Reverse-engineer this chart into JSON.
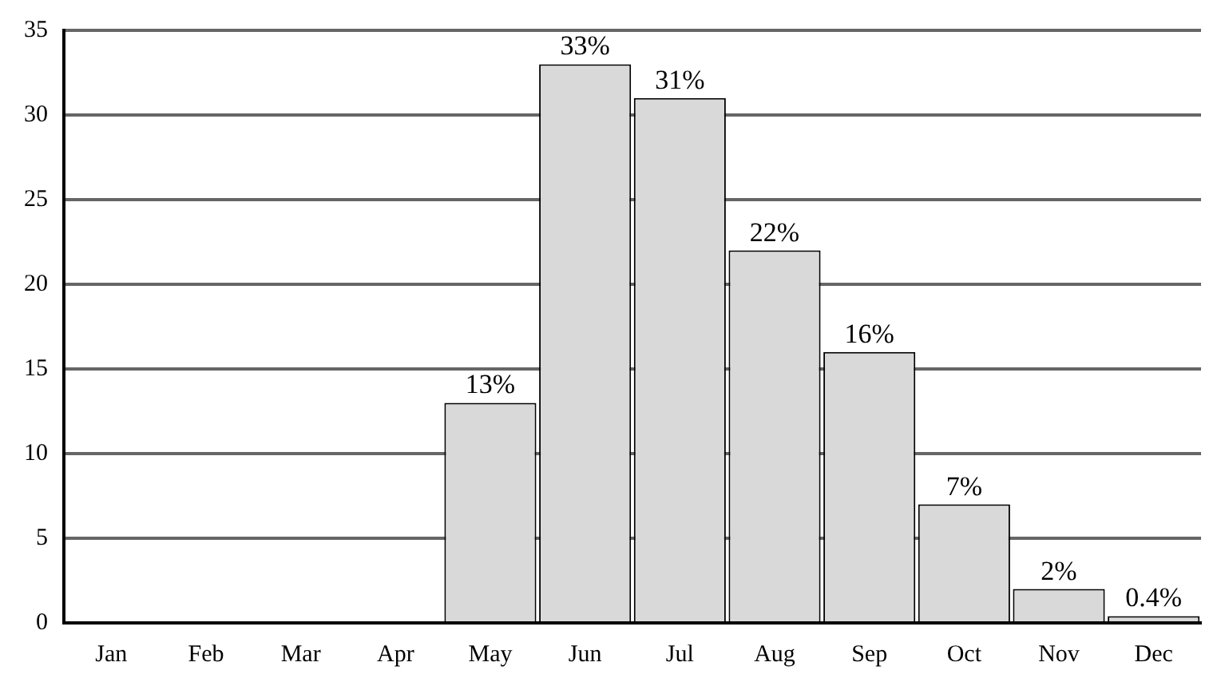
{
  "chart_data": {
    "type": "bar",
    "categories": [
      "Jan",
      "Feb",
      "Mar",
      "Apr",
      "May",
      "Jun",
      "Jul",
      "Aug",
      "Sep",
      "Oct",
      "Nov",
      "Dec"
    ],
    "values": [
      0,
      0,
      0,
      0,
      13,
      33,
      31,
      22,
      16,
      7,
      2,
      0.4
    ],
    "value_labels": [
      null,
      null,
      null,
      null,
      "13%",
      "33%",
      "31%",
      "22%",
      "16%",
      "7%",
      "2%",
      "0.4%"
    ],
    "color": "#d9d9d9",
    "ylim": [
      0,
      35
    ],
    "yticks": [
      0,
      5,
      10,
      15,
      20,
      25,
      30,
      35
    ],
    "grid": "y",
    "legend": false
  }
}
